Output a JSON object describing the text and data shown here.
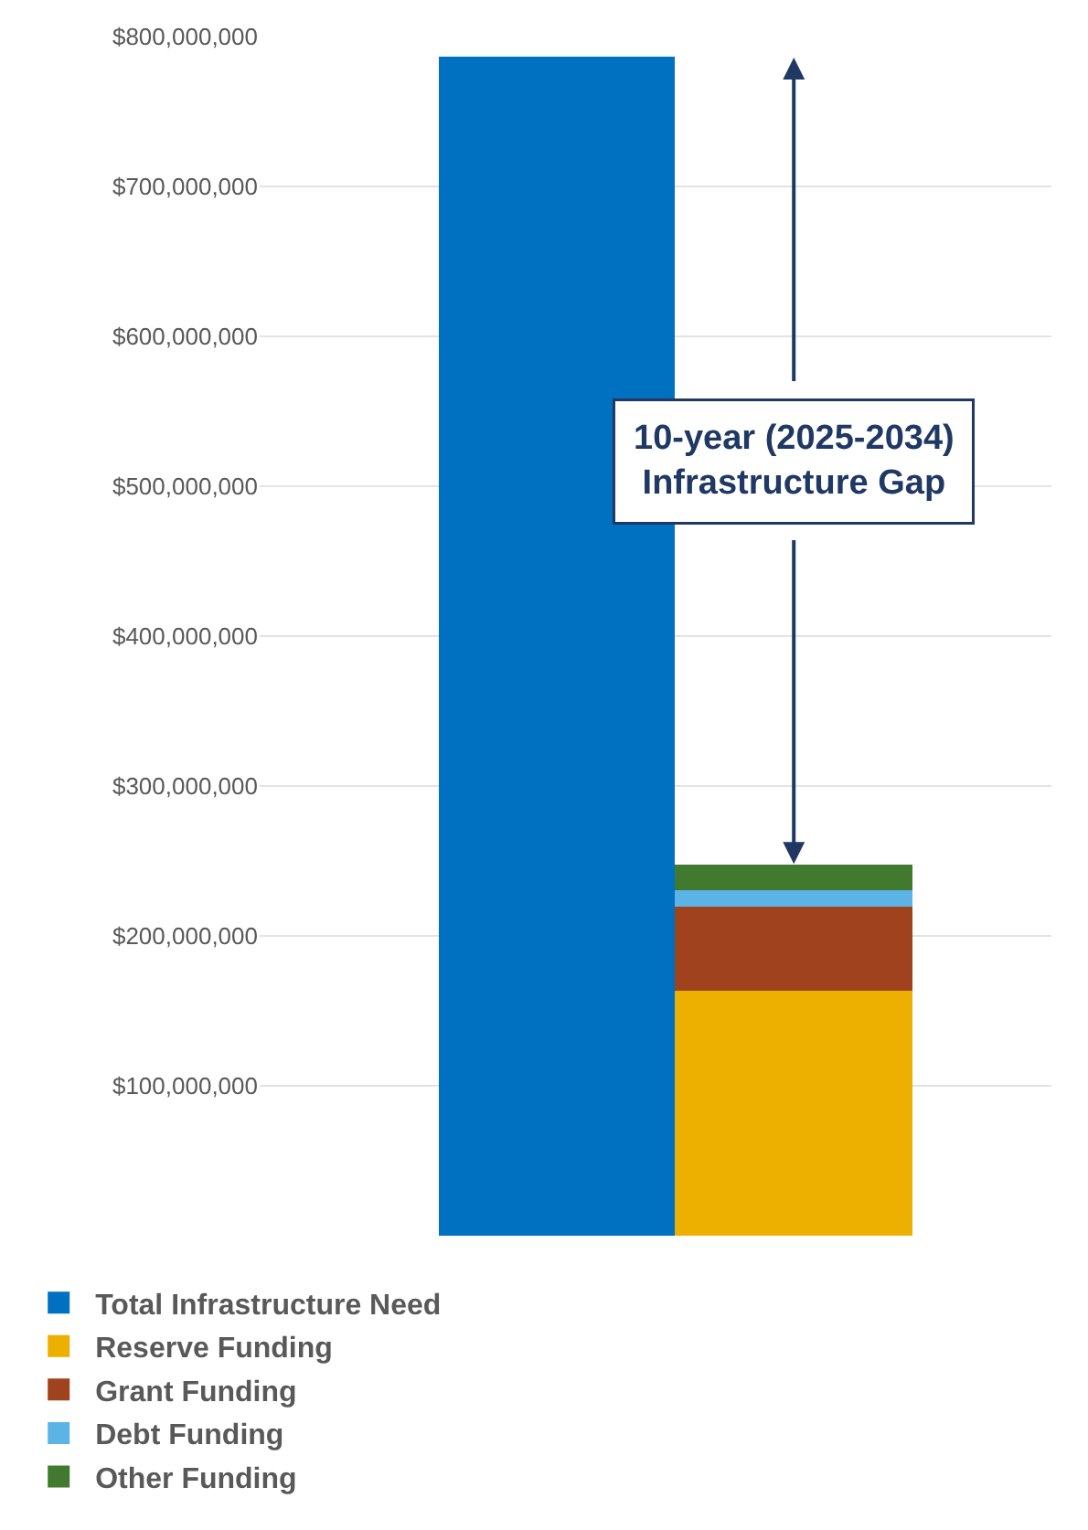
{
  "chart_data": {
    "type": "bar",
    "stacked": true,
    "categories": [
      null,
      null
    ],
    "series": [
      {
        "name": "Total Infrastructure Need",
        "color": "#0070c0",
        "values": [
          786000000,
          null
        ]
      },
      {
        "name": "Reserve Funding",
        "color": "#eeb000",
        "values": [
          null,
          164000000
        ]
      },
      {
        "name": "Grant Funding",
        "color": "#a0421e",
        "values": [
          null,
          55000000
        ]
      },
      {
        "name": "Debt Funding",
        "color": "#5bb4e5",
        "values": [
          null,
          11000000
        ]
      },
      {
        "name": "Other Funding",
        "color": "#417a2f",
        "values": [
          null,
          18000000
        ]
      }
    ],
    "ylim": [
      0,
      800000000
    ],
    "yticks": [
      {
        "value": 100000000,
        "label": "$100,000,000"
      },
      {
        "value": 200000000,
        "label": "$200,000,000"
      },
      {
        "value": 300000000,
        "label": "$300,000,000"
      },
      {
        "value": 400000000,
        "label": "$400,000,000"
      },
      {
        "value": 500000000,
        "label": "$500,000,000"
      },
      {
        "value": 600000000,
        "label": "$600,000,000"
      },
      {
        "value": 700000000,
        "label": "$700,000,000"
      },
      {
        "value": 800000000,
        "label": "$800,000,000"
      }
    ],
    "grid": "y",
    "legend": "bottom",
    "annotations": [
      "10-year (2025-2034)\nInfrastructure Gap"
    ]
  }
}
